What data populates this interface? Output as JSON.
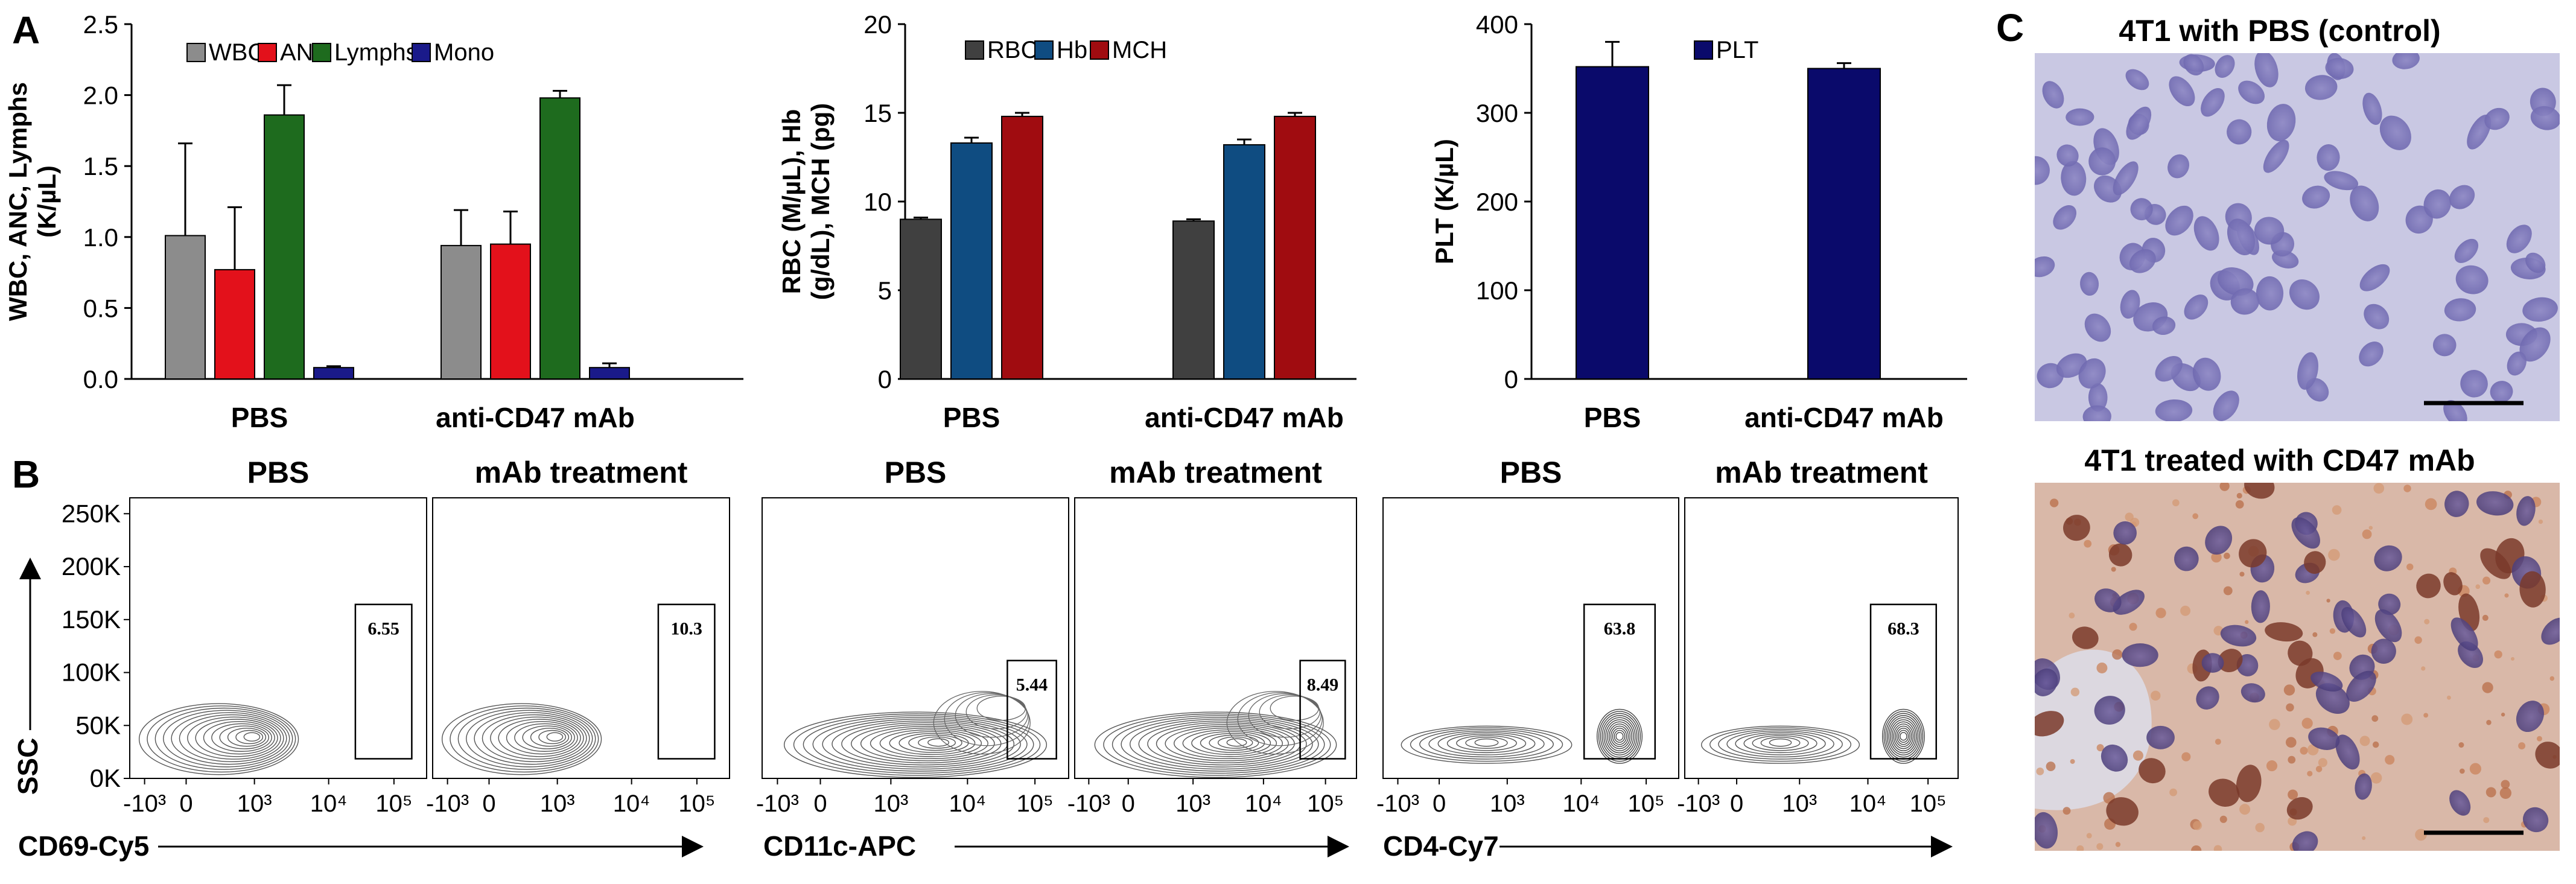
{
  "panel_labels": {
    "a": "A",
    "b": "B",
    "c": "C"
  },
  "chart_data": [
    {
      "id": "wbc",
      "type": "bar",
      "categories": [
        "PBS",
        "anti-CD47 mAb"
      ],
      "series": [
        {
          "name": "WBC",
          "color": "#8c8c8c",
          "values": [
            1.01,
            0.94
          ],
          "errors": [
            0.65,
            0.25
          ]
        },
        {
          "name": "ANC",
          "color": "#e3111b",
          "values": [
            0.77,
            0.95
          ],
          "errors": [
            0.44,
            0.23
          ]
        },
        {
          "name": "Lymphs",
          "color": "#1e6b1e",
          "values": [
            1.86,
            1.98
          ],
          "errors": [
            0.21,
            0.05
          ]
        },
        {
          "name": "Mono",
          "color": "#1a1a8a",
          "values": [
            0.08,
            0.08
          ],
          "errors": [
            0.01,
            0.03
          ]
        }
      ],
      "ylabel": "WBC, ANC, Lymphs (K/µL)",
      "ylim": [
        0,
        2.5
      ],
      "yticks": [
        "0.0",
        "0.5",
        "1.0",
        "1.5",
        "2.0",
        "2.5"
      ],
      "legend": "top"
    },
    {
      "id": "rbc",
      "type": "bar",
      "categories": [
        "PBS",
        "anti-CD47 mAb"
      ],
      "series": [
        {
          "name": "RBC",
          "color": "#404040",
          "values": [
            9.0,
            8.9
          ],
          "errors": [
            0.1,
            0.1
          ]
        },
        {
          "name": "Hb",
          "color": "#0f4c81",
          "values": [
            13.3,
            13.2
          ],
          "errors": [
            0.3,
            0.3
          ]
        },
        {
          "name": "MCH",
          "color": "#a00c10",
          "values": [
            14.8,
            14.8
          ],
          "errors": [
            0.2,
            0.2
          ]
        }
      ],
      "ylabel": "RBC (M/µL), Hb (g/dL), MCH (pg)",
      "ylim": [
        0,
        20
      ],
      "yticks": [
        "0",
        "5",
        "10",
        "15",
        "20"
      ],
      "legend": "top"
    },
    {
      "id": "plt",
      "type": "bar",
      "categories": [
        "PBS",
        "anti-CD47 mAb"
      ],
      "series": [
        {
          "name": "PLT",
          "color": "#0a0a6b",
          "values": [
            352,
            350
          ],
          "errors": [
            28,
            6
          ]
        }
      ],
      "ylabel": "PLT (K/µL)",
      "ylim": [
        0,
        400
      ],
      "yticks": [
        "0",
        "100",
        "200",
        "300",
        "400"
      ],
      "legend": "top"
    }
  ],
  "flow_panel_b": {
    "titles": [
      "PBS",
      "mAb treatment",
      "PBS",
      "mAb treatment",
      "PBS",
      "mAb treatment"
    ],
    "gate_values": [
      "6.55",
      "10.3",
      "5.44",
      "8.49",
      "63.8",
      "68.3"
    ],
    "y_axis_label": "SSC",
    "y_ticks": [
      "0K",
      "50K",
      "100K",
      "150K",
      "200K",
      "250K"
    ],
    "x_tick_labels": [
      "-10³",
      "0",
      "10³",
      "10⁴",
      "10⁵"
    ],
    "x_axis_labels": [
      "CD69-Cy5",
      "CD11c-APC",
      "CD4-Cy7"
    ]
  },
  "histology_panel_c": {
    "titles": [
      "4T1 with PBS (control)",
      "4T1 treated with CD47 mAb"
    ]
  }
}
